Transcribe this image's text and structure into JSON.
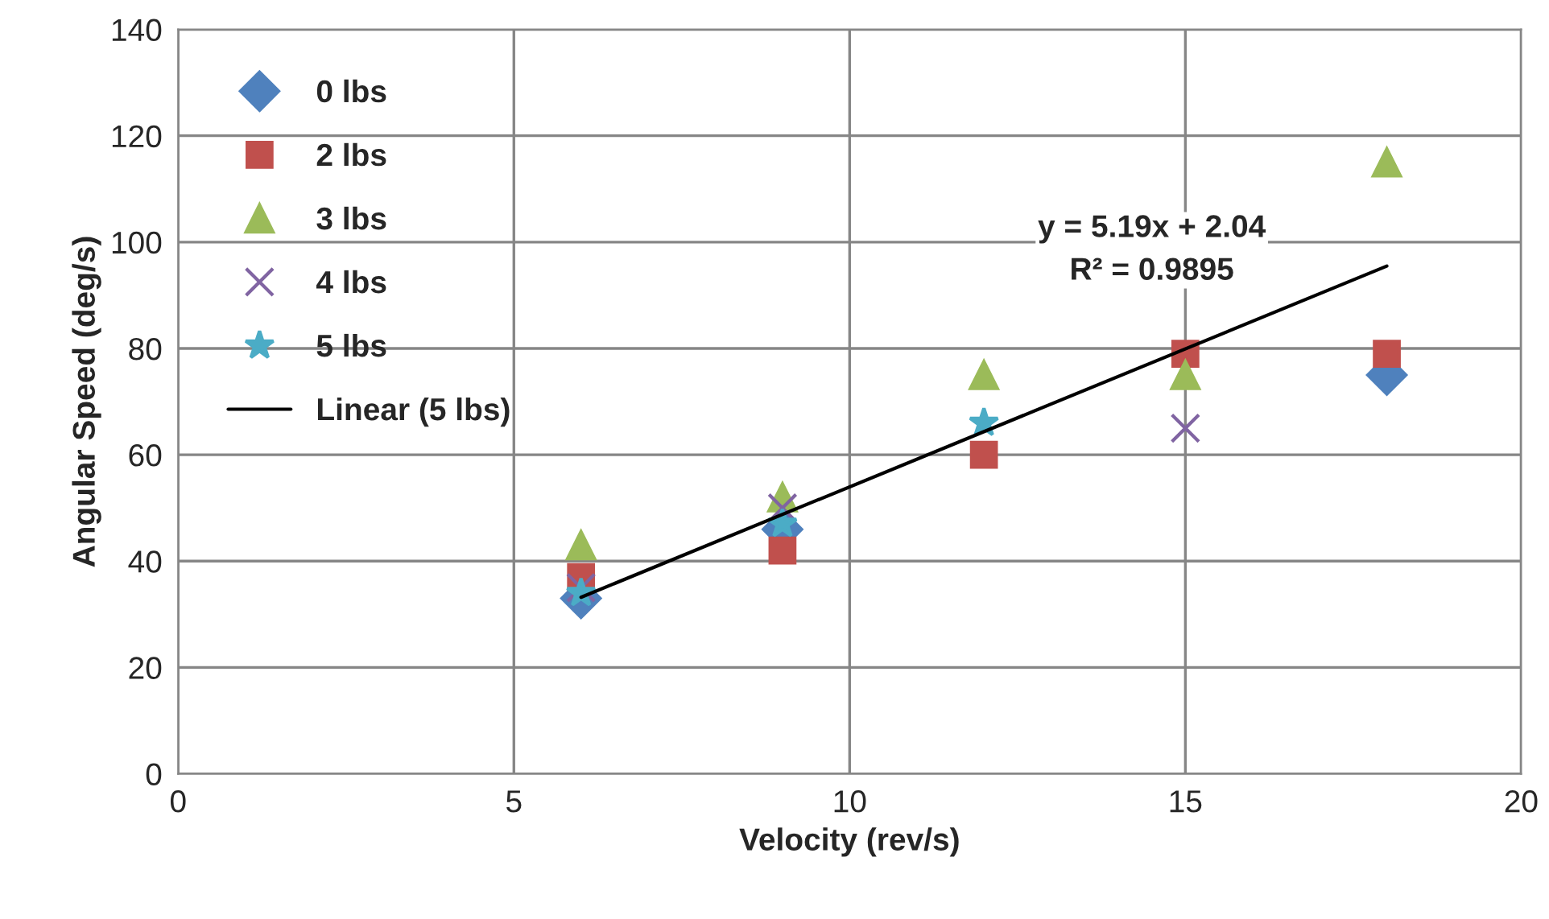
{
  "chart_data": {
    "type": "scatter",
    "xlabel": "Velocity (rev/s)",
    "ylabel": "Angular Speed (deg/s)",
    "x": [
      6,
      9,
      12,
      15,
      18
    ],
    "series": [
      {
        "name": "0 lbs",
        "color": "#4f81bd",
        "marker": "diamond",
        "values": [
          33,
          46,
          null,
          null,
          75
        ]
      },
      {
        "name": "2 lbs",
        "color": "#c0504d",
        "marker": "square",
        "values": [
          37,
          42,
          60,
          79,
          79
        ]
      },
      {
        "name": "3 lbs",
        "color": "#9bbb59",
        "marker": "triangle",
        "values": [
          43,
          52,
          75,
          75,
          115
        ]
      },
      {
        "name": "4 lbs",
        "color": "#8064a2",
        "marker": "cross",
        "values": [
          35,
          50,
          null,
          65,
          null
        ]
      },
      {
        "name": "5 lbs",
        "color": "#4bacc6",
        "marker": "star",
        "values": [
          34,
          47,
          66,
          null,
          null
        ]
      },
      {
        "name": "Linear (5 lbs)",
        "type": "line",
        "color": "#000000",
        "marker": "none",
        "line_style": "solid",
        "x": [
          6,
          18
        ],
        "values": [
          33.2,
          95.5
        ]
      }
    ],
    "annotations": [
      "y = 5.19x + 2.04\nR² = 0.9895"
    ],
    "xlim": [
      0,
      20
    ],
    "xticks": [
      0,
      5,
      10,
      15,
      20
    ],
    "ylim": [
      0,
      140
    ],
    "yticks": [
      0,
      20,
      40,
      60,
      80,
      100,
      120,
      140
    ],
    "grid": true,
    "legend": "top left"
  }
}
